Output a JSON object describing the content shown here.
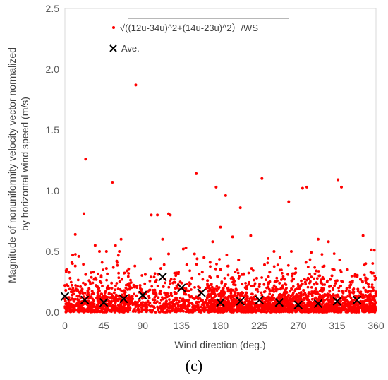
{
  "panel_label": "(c)",
  "chart_data": {
    "type": "scatter",
    "title": "",
    "xlabel": "Wind direction (deg.)",
    "ylabel_lines": [
      "Magnitude of nonuniformity velocity vector normalized",
      "by horizontal wind speed (m/s)"
    ],
    "xlim": [
      0,
      360
    ],
    "ylim": [
      0,
      2.5
    ],
    "xticks": [
      0,
      45,
      90,
      135,
      180,
      225,
      270,
      315,
      360
    ],
    "yticks": [
      0.0,
      0.5,
      1.0,
      1.5,
      2.0,
      2.5
    ],
    "ytick_labels": [
      "0.0",
      "0.5",
      "1.0",
      "1.5",
      "2.0",
      "2.5"
    ],
    "grid": false,
    "legend_position": "top",
    "series": [
      {
        "name": "√((12u-34u)^2+(14u-23u)^2）/WS",
        "marker": "dot",
        "color": "#ff0000",
        "x": [
          0,
          1,
          2,
          4,
          6,
          8,
          10,
          12,
          14,
          16,
          18,
          20,
          22,
          24,
          26,
          28,
          30,
          33,
          36,
          39,
          42,
          45,
          48,
          51,
          54,
          57,
          60,
          63,
          66,
          69,
          72,
          75,
          78,
          81,
          84,
          87,
          90,
          93,
          96,
          99,
          102,
          105,
          108,
          111,
          114,
          117,
          120,
          123,
          126,
          129,
          132,
          135,
          138,
          141,
          144,
          147,
          150,
          153,
          156,
          159,
          162,
          165,
          168,
          171,
          174,
          177,
          180,
          183,
          186,
          189,
          192,
          195,
          198,
          201,
          204,
          207,
          210,
          213,
          216,
          219,
          222,
          225,
          228,
          231,
          234,
          237,
          240,
          243,
          246,
          249,
          252,
          255,
          258,
          261,
          264,
          267,
          270,
          273,
          276,
          279,
          282,
          285,
          288,
          291,
          294,
          297,
          300,
          303,
          306,
          309,
          312,
          315,
          318,
          321,
          324,
          327,
          330,
          333,
          336,
          339,
          342,
          345,
          348,
          351,
          354,
          357,
          360,
          24,
          55,
          82,
          120,
          152,
          175,
          186,
          228,
          259,
          275,
          280,
          316,
          320,
          22,
          9,
          122,
          113,
          100,
          107,
          140,
          171,
          180,
          194,
          203,
          345,
          358,
          65,
          35,
          40,
          63,
          137,
          161,
          215,
          242,
          262,
          12,
          48,
          150,
          293,
          305
        ],
        "y": [
          0.22,
          0.18,
          0.35,
          0.12,
          0.28,
          0.41,
          0.15,
          0.38,
          0.07,
          0.46,
          0.21,
          0.19,
          0.08,
          0.31,
          0.14,
          0.26,
          0.05,
          0.33,
          0.22,
          0.17,
          0.29,
          0.12,
          0.36,
          0.09,
          0.24,
          0.16,
          0.42,
          0.11,
          0.27,
          0.06,
          0.34,
          0.19,
          0.13,
          0.38,
          0.08,
          0.22,
          0.16,
          0.31,
          0.09,
          0.44,
          0.18,
          0.25,
          0.12,
          0.36,
          0.21,
          0.14,
          0.48,
          0.27,
          0.1,
          0.32,
          0.19,
          0.24,
          0.15,
          0.39,
          0.22,
          0.28,
          0.11,
          0.44,
          0.17,
          0.33,
          0.08,
          0.26,
          0.41,
          0.18,
          0.14,
          0.29,
          0.35,
          0.06,
          0.23,
          0.38,
          0.12,
          0.27,
          0.19,
          0.43,
          0.09,
          0.31,
          0.16,
          0.24,
          0.36,
          0.11,
          0.28,
          0.21,
          0.14,
          0.39,
          0.07,
          0.33,
          0.18,
          0.25,
          0.12,
          0.45,
          0.2,
          0.15,
          0.31,
          0.08,
          0.27,
          0.36,
          0.13,
          0.22,
          0.18,
          0.41,
          0.09,
          0.29,
          0.16,
          0.34,
          0.11,
          0.24,
          0.38,
          0.14,
          0.21,
          0.3,
          0.07,
          0.26,
          0.43,
          0.17,
          0.12,
          0.35,
          0.22,
          0.09,
          0.31,
          0.19,
          0.27,
          0.14,
          0.4,
          0.23,
          0.33,
          0.18,
          0.28,
          1.26,
          1.07,
          1.87,
          0.81,
          1.14,
          1.03,
          0.96,
          1.1,
          0.91,
          1.02,
          1.03,
          1.09,
          1.03,
          0.81,
          0.47,
          0.8,
          0.6,
          0.8,
          0.8,
          0.53,
          0.58,
          0.7,
          0.62,
          0.86,
          0.63,
          0.51,
          0.6,
          0.55,
          0.5,
          0.5,
          0.52,
          0.45,
          0.63,
          0.5,
          0.5,
          0.64,
          0.5,
          0.48,
          0.6,
          0.58
        ]
      },
      {
        "name": "Ave.",
        "marker": "x",
        "color": "#000000",
        "x": [
          0,
          23,
          45,
          68,
          90,
          113,
          135,
          158,
          180,
          203,
          225,
          248,
          270,
          293,
          315,
          338
        ],
        "y": [
          0.13,
          0.1,
          0.08,
          0.11,
          0.14,
          0.29,
          0.2,
          0.16,
          0.08,
          0.09,
          0.1,
          0.08,
          0.06,
          0.07,
          0.09,
          0.1
        ]
      }
    ]
  }
}
